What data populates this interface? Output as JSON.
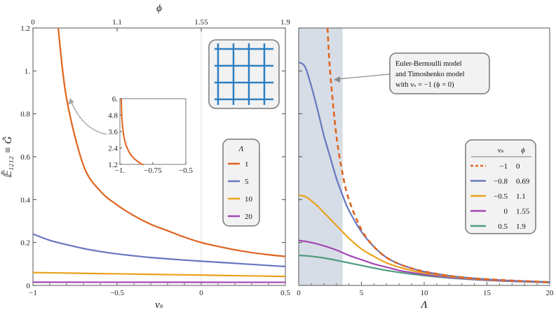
{
  "y_axis_label": "𝔼̃₁₂₁₂ ≡ G̃",
  "chart_data": [
    {
      "type": "line",
      "xlabel": "νₛ",
      "top_axis_label": "ϕ",
      "xlim": [
        -1,
        0.5
      ],
      "ylim": [
        0,
        1.2
      ],
      "x_ticks": [
        "−1",
        "−0.5",
        "0",
        "0.5"
      ],
      "y_ticks": [
        "0",
        "0.2",
        "0.4",
        "0.6",
        "0.8",
        "1.",
        "1.2"
      ],
      "top_ticks": [
        "0",
        "1.1",
        "1.55",
        "1.9"
      ],
      "legend": {
        "title": "Λ",
        "entries": [
          "1",
          "5",
          "10",
          "20"
        ]
      },
      "series": [
        {
          "name": "1",
          "color": "#e0631e",
          "points": [
            [
              -0.85,
              1.2
            ],
            [
              -0.8,
              0.87
            ],
            [
              -0.7,
              0.56
            ],
            [
              -0.6,
              0.44
            ],
            [
              -0.5,
              0.375
            ],
            [
              -0.4,
              0.325
            ],
            [
              -0.3,
              0.285
            ],
            [
              -0.2,
              0.255
            ],
            [
              -0.1,
              0.225
            ],
            [
              0,
              0.2
            ],
            [
              0.1,
              0.182
            ],
            [
              0.2,
              0.166
            ],
            [
              0.3,
              0.153
            ],
            [
              0.4,
              0.143
            ],
            [
              0.5,
              0.135
            ]
          ]
        },
        {
          "name": "5",
          "color": "#6777c0",
          "points": [
            [
              -1,
              0.24
            ],
            [
              -0.9,
              0.21
            ],
            [
              -0.8,
              0.19
            ],
            [
              -0.7,
              0.172
            ],
            [
              -0.6,
              0.158
            ],
            [
              -0.5,
              0.147
            ],
            [
              -0.4,
              0.138
            ],
            [
              -0.3,
              0.13
            ],
            [
              -0.2,
              0.124
            ],
            [
              -0.1,
              0.118
            ],
            [
              0,
              0.113
            ],
            [
              0.1,
              0.108
            ],
            [
              0.2,
              0.103
            ],
            [
              0.3,
              0.098
            ],
            [
              0.4,
              0.093
            ],
            [
              0.5,
              0.088
            ]
          ]
        },
        {
          "name": "10",
          "color": "#eaa21c",
          "points": [
            [
              -1,
              0.06
            ],
            [
              -0.75,
              0.057
            ],
            [
              -0.5,
              0.054
            ],
            [
              -0.25,
              0.051
            ],
            [
              0,
              0.048
            ],
            [
              0.25,
              0.045
            ],
            [
              0.5,
              0.042
            ]
          ]
        },
        {
          "name": "20",
          "color": "#a347b3",
          "points": [
            [
              -1,
              0.015
            ],
            [
              -0.5,
              0.0148
            ],
            [
              0,
              0.0146
            ],
            [
              0.5,
              0.0144
            ]
          ]
        }
      ],
      "inset": {
        "xlim": [
          -1,
          -0.5
        ],
        "ylim": [
          1.2,
          6
        ],
        "x_ticks": [
          "−1.",
          "−0.75",
          "−0.5"
        ],
        "y_ticks": [
          "1.2",
          "2.4",
          "3.6",
          "4.8",
          "6."
        ],
        "series": [
          {
            "name": "1",
            "color": "#e0631e",
            "points": [
              [
                -0.99,
                6
              ],
              [
                -0.985,
                4.6
              ],
              [
                -0.975,
                3.6
              ],
              [
                -0.96,
                2.8
              ],
              [
                -0.94,
                2.3
              ],
              [
                -0.92,
                1.95
              ],
              [
                -0.9,
                1.7
              ],
              [
                -0.87,
                1.45
              ],
              [
                -0.84,
                1.25
              ],
              [
                -0.82,
                1.18
              ]
            ]
          }
        ]
      }
    },
    {
      "type": "line",
      "xlabel": "Λ",
      "xlim": [
        0,
        20
      ],
      "ylim": [
        0,
        1.2
      ],
      "x_ticks": [
        "0",
        "5",
        "10",
        "15",
        "20"
      ],
      "annotation": [
        "Euler-Bernoulli model",
        "and Timoshenko model",
        "with νₛ = −1 (ϕ = 0)"
      ],
      "legend": {
        "headers": [
          "νₛ",
          "ϕ"
        ],
        "entries": [
          {
            "nu": "−1",
            "phi": "0"
          },
          {
            "nu": "−0.8",
            "phi": "0.69"
          },
          {
            "nu": "−0.5",
            "phi": "1.1"
          },
          {
            "nu": "0",
            "phi": "1.55"
          },
          {
            "nu": "0.5",
            "phi": "1.9"
          }
        ]
      },
      "shaded_region_x": [
        0,
        3.5
      ],
      "series": [
        {
          "name": "−1",
          "color": "#e0631e",
          "dashed": true,
          "points": [
            [
              2.3,
              1.2
            ],
            [
              2.5,
              1.0
            ],
            [
              3,
              0.7
            ],
            [
              3.5,
              0.52
            ],
            [
              4,
              0.4
            ],
            [
              5,
              0.26
            ],
            [
              6,
              0.18
            ],
            [
              7,
              0.13
            ],
            [
              8,
              0.1
            ],
            [
              9,
              0.08
            ],
            [
              10,
              0.065
            ],
            [
              12,
              0.045
            ],
            [
              14,
              0.033
            ],
            [
              16,
              0.026
            ],
            [
              18,
              0.02
            ],
            [
              20,
              0.016
            ]
          ]
        },
        {
          "name": "−0.8",
          "color": "#6777c0",
          "points": [
            [
              0,
              1.04
            ],
            [
              0.5,
              1.02
            ],
            [
              1,
              0.93
            ],
            [
              1.5,
              0.82
            ],
            [
              2,
              0.7
            ],
            [
              2.5,
              0.6
            ],
            [
              3,
              0.5
            ],
            [
              3.5,
              0.42
            ],
            [
              4,
              0.35
            ],
            [
              5,
              0.25
            ],
            [
              6,
              0.18
            ],
            [
              7,
              0.13
            ],
            [
              8,
              0.1
            ],
            [
              9,
              0.08
            ],
            [
              10,
              0.064
            ],
            [
              12,
              0.045
            ],
            [
              14,
              0.033
            ],
            [
              16,
              0.025
            ],
            [
              18,
              0.02
            ],
            [
              20,
              0.016
            ]
          ]
        },
        {
          "name": "−0.5",
          "color": "#eaa21c",
          "points": [
            [
              0,
              0.42
            ],
            [
              0.5,
              0.415
            ],
            [
              1,
              0.395
            ],
            [
              1.5,
              0.37
            ],
            [
              2,
              0.34
            ],
            [
              3,
              0.28
            ],
            [
              4,
              0.22
            ],
            [
              5,
              0.17
            ],
            [
              6,
              0.135
            ],
            [
              7,
              0.105
            ],
            [
              8,
              0.085
            ],
            [
              9,
              0.07
            ],
            [
              10,
              0.058
            ],
            [
              12,
              0.042
            ],
            [
              14,
              0.031
            ],
            [
              16,
              0.024
            ],
            [
              18,
              0.019
            ],
            [
              20,
              0.015
            ]
          ]
        },
        {
          "name": "0",
          "color": "#a347b3",
          "points": [
            [
              0,
              0.21
            ],
            [
              1,
              0.2
            ],
            [
              2,
              0.185
            ],
            [
              3,
              0.165
            ],
            [
              4,
              0.14
            ],
            [
              5,
              0.12
            ],
            [
              6,
              0.1
            ],
            [
              7,
              0.085
            ],
            [
              8,
              0.07
            ],
            [
              9,
              0.06
            ],
            [
              10,
              0.051
            ],
            [
              12,
              0.038
            ],
            [
              14,
              0.029
            ],
            [
              16,
              0.022
            ],
            [
              18,
              0.018
            ],
            [
              20,
              0.014
            ]
          ]
        },
        {
          "name": "0.5",
          "color": "#4f9a7d",
          "points": [
            [
              0,
              0.14
            ],
            [
              1,
              0.136
            ],
            [
              2,
              0.128
            ],
            [
              3,
              0.117
            ],
            [
              4,
              0.105
            ],
            [
              5,
              0.093
            ],
            [
              6,
              0.081
            ],
            [
              7,
              0.07
            ],
            [
              8,
              0.061
            ],
            [
              9,
              0.053
            ],
            [
              10,
              0.046
            ],
            [
              12,
              0.035
            ],
            [
              14,
              0.027
            ],
            [
              16,
              0.021
            ],
            [
              18,
              0.017
            ],
            [
              20,
              0.013
            ]
          ]
        }
      ]
    }
  ]
}
